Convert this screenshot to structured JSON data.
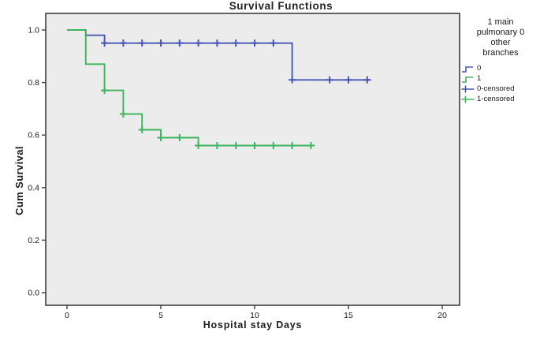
{
  "title": "Survival Functions",
  "x_axis": {
    "label": "Hospital stay Days",
    "tick_labels": [
      "0",
      "5",
      "10",
      "15",
      "20"
    ]
  },
  "y_axis": {
    "label": "Cum Survival",
    "tick_labels": [
      "0.0",
      "0.2",
      "0.4",
      "0.6",
      "0.8",
      "1.0"
    ]
  },
  "legend": {
    "title_lines": [
      "1 main",
      "pulmonary 0",
      "other",
      "branches"
    ],
    "entries": [
      {
        "label": "0",
        "type": "step-line",
        "color": "#4757b4"
      },
      {
        "label": "1",
        "type": "step-line",
        "color": "#3cb45c"
      },
      {
        "label": "0-censored",
        "type": "censor-plus",
        "color": "#4757b4"
      },
      {
        "label": "1-censored",
        "type": "censor-plus",
        "color": "#3cb45c"
      }
    ]
  },
  "colors": {
    "panel_background": "#ececec",
    "frame": "#3d3d3d",
    "group0_blue": "#4757b4",
    "group1_green": "#3cb45c",
    "text": "#1c1c1c"
  },
  "chart_data": {
    "type": "line",
    "subtype": "kaplan-meier-step",
    "title": "Survival Functions",
    "xlabel": "Hospital stay Days",
    "ylabel": "Cum Survival",
    "xlim": [
      -1.2,
      21.2
    ],
    "ylim": [
      -0.05,
      1.05
    ],
    "x_ticks": [
      0,
      5,
      10,
      15,
      20
    ],
    "y_ticks": [
      0.0,
      0.2,
      0.4,
      0.6,
      0.8,
      1.0
    ],
    "grid": false,
    "legend_position": "right",
    "series": [
      {
        "name": "0",
        "color": "#4757b4",
        "points": [
          [
            0,
            1.0
          ],
          [
            1,
            1.0
          ],
          [
            1,
            0.98
          ],
          [
            2,
            0.98
          ],
          [
            2,
            0.95
          ],
          [
            12,
            0.95
          ],
          [
            12,
            0.81
          ],
          [
            16.2,
            0.81
          ]
        ],
        "censored": [
          [
            2,
            0.95
          ],
          [
            3,
            0.95
          ],
          [
            4,
            0.95
          ],
          [
            5,
            0.95
          ],
          [
            6,
            0.95
          ],
          [
            7,
            0.95
          ],
          [
            8,
            0.95
          ],
          [
            9,
            0.95
          ],
          [
            10,
            0.95
          ],
          [
            11,
            0.95
          ],
          [
            12,
            0.81
          ],
          [
            14,
            0.81
          ],
          [
            15,
            0.81
          ],
          [
            16,
            0.81
          ]
        ]
      },
      {
        "name": "1",
        "color": "#3cb45c",
        "points": [
          [
            0,
            1.0
          ],
          [
            1,
            1.0
          ],
          [
            1,
            0.87
          ],
          [
            2,
            0.87
          ],
          [
            2,
            0.77
          ],
          [
            3,
            0.77
          ],
          [
            3,
            0.68
          ],
          [
            4,
            0.68
          ],
          [
            4,
            0.62
          ],
          [
            5,
            0.62
          ],
          [
            5,
            0.59
          ],
          [
            7,
            0.59
          ],
          [
            7,
            0.56
          ],
          [
            13.2,
            0.56
          ]
        ],
        "censored": [
          [
            2,
            0.77
          ],
          [
            3,
            0.68
          ],
          [
            4,
            0.62
          ],
          [
            5,
            0.59
          ],
          [
            6,
            0.59
          ],
          [
            7,
            0.56
          ],
          [
            8,
            0.56
          ],
          [
            9,
            0.56
          ],
          [
            10,
            0.56
          ],
          [
            11,
            0.56
          ],
          [
            12,
            0.56
          ],
          [
            13,
            0.56
          ]
        ]
      }
    ]
  }
}
